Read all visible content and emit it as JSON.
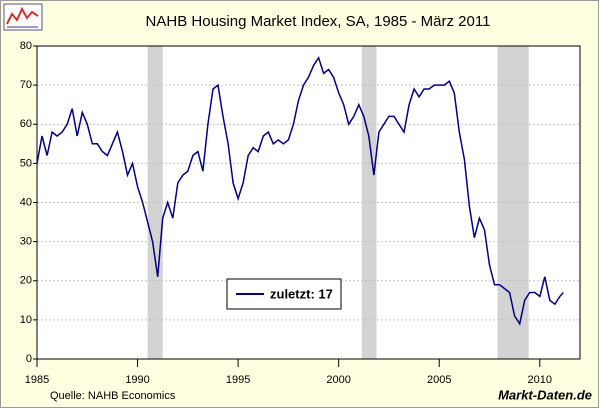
{
  "chart_data": {
    "type": "line",
    "title": "NAHB Housing Market Index, SA, 1985 - März 2011",
    "source": "Quelle: NAHB Economics",
    "watermark": "Markt-Daten.de",
    "xlim": [
      1985,
      2012
    ],
    "xticks": [
      1985,
      1990,
      1995,
      2000,
      2005,
      2010
    ],
    "ylim": [
      0,
      80
    ],
    "yticks": [
      0,
      10,
      20,
      30,
      40,
      50,
      60,
      70,
      80
    ],
    "grid": true,
    "recessions": [
      [
        1990.5,
        1991.25
      ],
      [
        2001.15,
        2001.88
      ],
      [
        2007.9,
        2009.45
      ]
    ],
    "recession_color": "#d3d3d3",
    "x": [
      1985,
      1985.25,
      1985.5,
      1985.75,
      1986,
      1986.25,
      1986.5,
      1986.75,
      1987,
      1987.25,
      1987.5,
      1987.75,
      1988,
      1988.25,
      1988.5,
      1988.75,
      1989,
      1989.25,
      1989.5,
      1989.75,
      1990,
      1990.25,
      1990.5,
      1990.75,
      1991,
      1991.25,
      1991.5,
      1991.75,
      1992,
      1992.25,
      1992.5,
      1992.75,
      1993,
      1993.25,
      1993.5,
      1993.75,
      1994,
      1994.25,
      1994.5,
      1994.75,
      1995,
      1995.25,
      1995.5,
      1995.75,
      1996,
      1996.25,
      1996.5,
      1996.75,
      1997,
      1997.25,
      1997.5,
      1997.75,
      1998,
      1998.25,
      1998.5,
      1998.75,
      1999,
      1999.25,
      1999.5,
      1999.75,
      2000,
      2000.25,
      2000.5,
      2000.75,
      2001,
      2001.25,
      2001.5,
      2001.75,
      2002,
      2002.25,
      2002.5,
      2002.75,
      2003,
      2003.25,
      2003.5,
      2003.75,
      2004,
      2004.25,
      2004.5,
      2004.75,
      2005,
      2005.25,
      2005.5,
      2005.75,
      2006,
      2006.25,
      2006.5,
      2006.75,
      2007,
      2007.25,
      2007.5,
      2007.75,
      2008,
      2008.25,
      2008.5,
      2008.75,
      2009,
      2009.25,
      2009.5,
      2009.75,
      2010,
      2010.25,
      2010.5,
      2010.75,
      2011,
      2011.17
    ],
    "series": [
      {
        "name": "zuletzt: 17",
        "color": "#000080",
        "values": [
          50,
          57,
          52,
          58,
          57,
          58,
          60,
          64,
          57,
          63,
          60,
          55,
          55,
          53,
          52,
          55,
          58,
          53,
          47,
          50,
          44,
          40,
          35,
          30,
          21,
          36,
          40,
          36,
          45,
          47,
          48,
          52,
          53,
          48,
          60,
          69,
          70,
          62,
          55,
          45,
          41,
          45,
          52,
          54,
          53,
          57,
          58,
          55,
          56,
          55,
          56,
          60,
          66,
          70,
          72,
          75,
          77,
          73,
          74,
          72,
          68,
          65,
          60,
          62,
          65,
          62,
          57,
          47,
          58,
          60,
          62,
          62,
          60,
          58,
          65,
          69,
          67,
          69,
          69,
          70,
          70,
          70,
          71,
          68,
          58,
          51,
          39,
          31,
          36,
          33,
          24,
          19,
          19,
          18,
          17,
          11,
          9,
          15,
          17,
          17,
          16,
          21,
          15,
          14,
          16,
          17
        ]
      }
    ]
  }
}
